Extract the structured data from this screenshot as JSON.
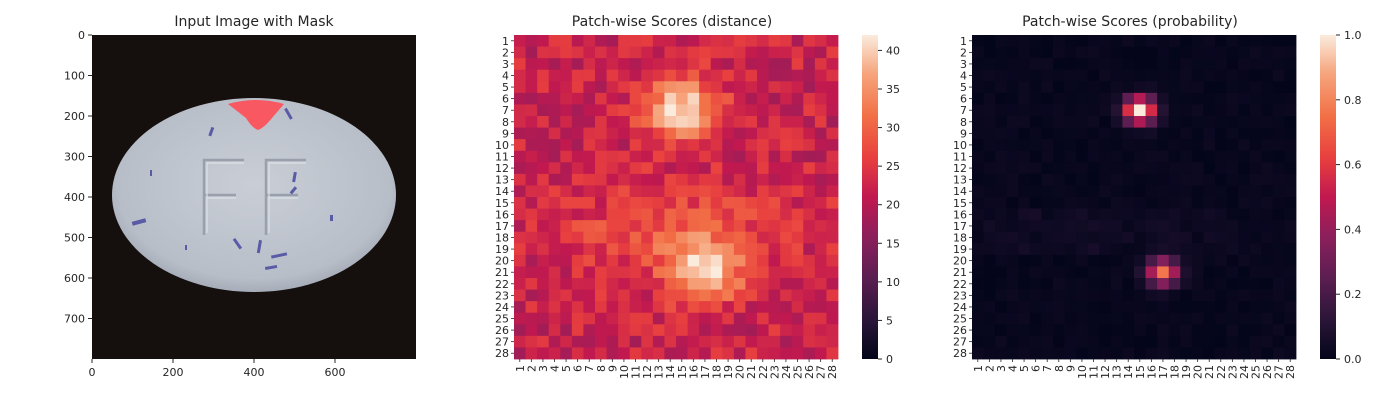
{
  "figure": {
    "panel1": {
      "title": "Input Image with Mask",
      "x_ticks": [
        "0",
        "200",
        "400",
        "600"
      ],
      "y_ticks": [
        "0",
        "100",
        "200",
        "300",
        "400",
        "500",
        "600",
        "700"
      ],
      "x_range": [
        0,
        800
      ],
      "y_range": [
        0,
        800
      ],
      "image": {
        "subject": "white oval tablet embossed with the letters FF on a dark background",
        "mask_color": "#ff4d55"
      }
    },
    "panel2": {
      "title": "Patch-wise Scores (distance)",
      "colorbar_ticks": [
        "0",
        "5",
        "10",
        "15",
        "20",
        "25",
        "30",
        "35",
        "40"
      ],
      "colorbar_range": [
        0,
        42
      ]
    },
    "panel3": {
      "title": "Patch-wise Scores (probability)",
      "colorbar_ticks": [
        "0.0",
        "0.2",
        "0.4",
        "0.6",
        "0.8",
        "1.0"
      ],
      "colorbar_range": [
        0,
        1
      ]
    },
    "heatmap_row_labels": [
      "1",
      "2",
      "3",
      "4",
      "5",
      "6",
      "7",
      "8",
      "9",
      "10",
      "11",
      "12",
      "13",
      "14",
      "15",
      "16",
      "17",
      "18",
      "19",
      "20",
      "21",
      "22",
      "23",
      "24",
      "25",
      "26",
      "27",
      "28"
    ],
    "heatmap_col_labels": [
      "1",
      "2",
      "3",
      "4",
      "5",
      "6",
      "7",
      "8",
      "9",
      "10",
      "11",
      "12",
      "13",
      "14",
      "15",
      "16",
      "17",
      "18",
      "19",
      "20",
      "21",
      "22",
      "23",
      "24",
      "25",
      "26",
      "27",
      "28"
    ]
  },
  "chart_data": [
    {
      "type": "image",
      "title": "Input Image with Mask",
      "xlim": [
        0,
        800
      ],
      "ylim": [
        800,
        0
      ],
      "x_ticks": [
        0,
        200,
        400,
        600
      ],
      "y_ticks": [
        0,
        100,
        200,
        300,
        400,
        500,
        600,
        700
      ]
    },
    {
      "type": "heatmap",
      "title": "Patch-wise Scores (distance)",
      "rows": 28,
      "cols": 28,
      "value_range": [
        0,
        42
      ],
      "colormap": "rocket",
      "hotspots": [
        {
          "row": 7,
          "col": 15,
          "value": 42
        },
        {
          "row": 21,
          "col": 17,
          "value": 40
        }
      ],
      "background_value": 22
    },
    {
      "type": "heatmap",
      "title": "Patch-wise Scores (probability)",
      "rows": 28,
      "cols": 28,
      "value_range": [
        0,
        1
      ],
      "colormap": "rocket",
      "hotspots": [
        {
          "row": 7,
          "col": 15,
          "value": 1.0
        },
        {
          "row": 21,
          "col": 17,
          "value": 0.75
        }
      ],
      "background_value": 0.0
    }
  ]
}
